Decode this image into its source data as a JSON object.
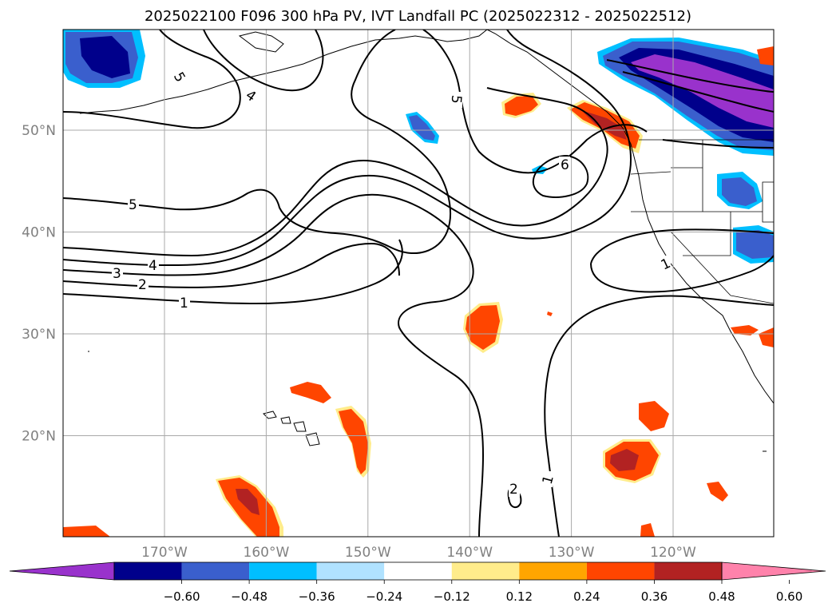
{
  "title": "2025022100 F096 300 hPa PV, IVT Landfall PC (2025022312 - 2025022512)",
  "map": {
    "lat_ticks": [
      {
        "lat": 50,
        "label": "50°N"
      },
      {
        "lat": 40,
        "label": "40°N"
      },
      {
        "lat": 30,
        "label": "30°N"
      },
      {
        "lat": 20,
        "label": "20°N"
      }
    ],
    "lon_ticks": [
      {
        "lon": -170,
        "label": "170°W"
      },
      {
        "lon": -160,
        "label": "160°W"
      },
      {
        "lon": -150,
        "label": "150°W"
      },
      {
        "lon": -140,
        "label": "140°W"
      },
      {
        "lon": -130,
        "label": "130°W"
      },
      {
        "lon": -120,
        "label": "120°W"
      }
    ],
    "contour_labels": [
      "5",
      "4",
      "5",
      "6",
      "5",
      "4",
      "3",
      "2",
      "1",
      "1",
      "1",
      "2"
    ],
    "grid_color": "#a9a9a9"
  },
  "colorbar": {
    "ticks": [
      "−0.60",
      "−0.48",
      "−0.36",
      "−0.24",
      "−0.12",
      "0.12",
      "0.24",
      "0.36",
      "0.48",
      "0.60"
    ],
    "colors": [
      "#9932cc",
      "#00008b",
      "#3a5fcd",
      "#00bfff",
      "#b0e2ff",
      "#ffffff",
      "#ffec8b",
      "#ffa500",
      "#ff4500",
      "#b22222",
      "#ff82ab"
    ]
  }
}
